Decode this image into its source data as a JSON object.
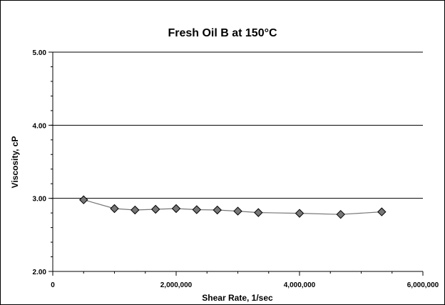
{
  "chart_data": {
    "type": "line",
    "title": "Fresh Oil B at 150°C",
    "xlabel": "Shear Rate, 1/sec",
    "ylabel": "Viscosity, cP",
    "xlim": [
      0,
      6000000
    ],
    "ylim": [
      2.0,
      5.0
    ],
    "x_ticks": [
      0,
      2000000,
      4000000,
      6000000
    ],
    "x_tick_labels": [
      "0",
      "2,000,000",
      "4,000,000",
      "6,000,000"
    ],
    "y_ticks": [
      2.0,
      3.0,
      4.0,
      5.0
    ],
    "y_tick_labels": [
      "2.00",
      "3.00",
      "4.00",
      "5.00"
    ],
    "gridlines": "horizontal",
    "legend": "none",
    "series": [
      {
        "x": [
          500000,
          1000000,
          1333000,
          1667000,
          2000000,
          2333000,
          2667000,
          3000000,
          3333000,
          4000000,
          4667000,
          5333000
        ],
        "y": [
          2.98,
          2.86,
          2.84,
          2.85,
          2.86,
          2.845,
          2.84,
          2.825,
          2.805,
          2.795,
          2.78,
          2.815
        ],
        "marker": "diamond",
        "marker_color": "#777777",
        "line_color": "#777777"
      }
    ]
  }
}
